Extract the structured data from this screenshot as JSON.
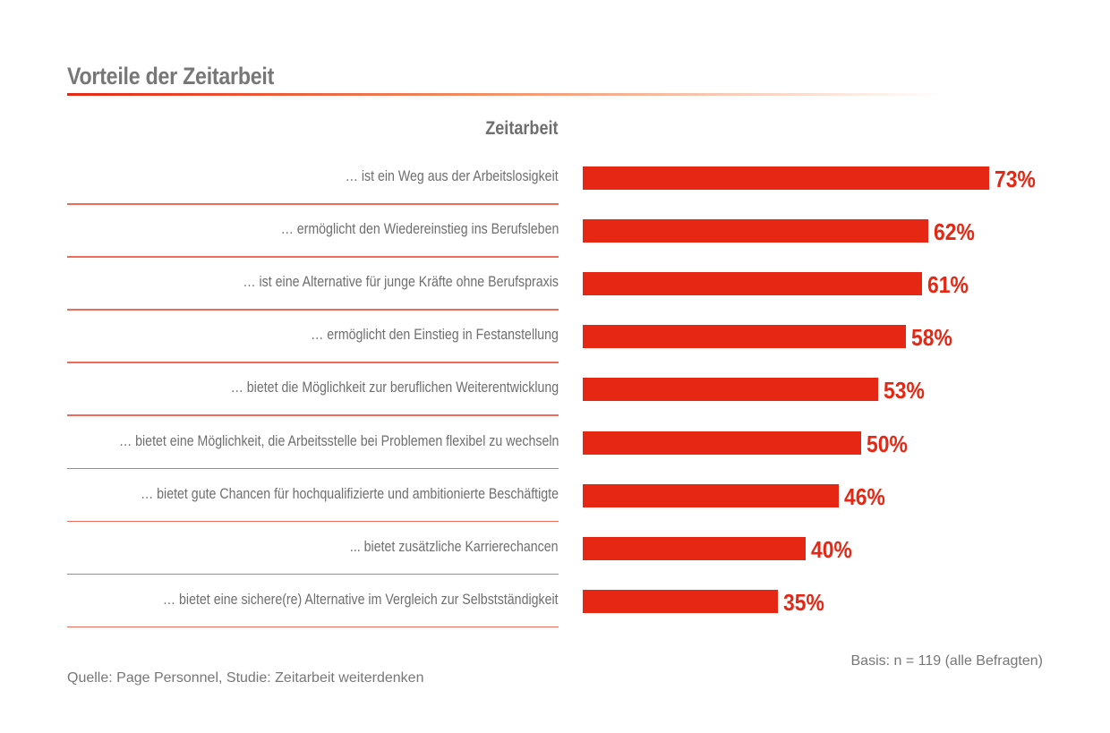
{
  "title": "Vorteile der Zeitarbeit",
  "colors": {
    "bar": "#e52713",
    "text": "#6e6e6e"
  },
  "chart_data": {
    "type": "bar",
    "orientation": "horizontal",
    "title": "Vorteile der Zeitarbeit",
    "series_label": "Zeitarbeit",
    "categories": [
      "… ist ein Weg aus der Arbeitslosigkeit",
      "… ermöglicht den Wiedereinstieg ins Berufsleben",
      "… ist eine Alternative für junge Kräfte ohne Berufspraxis",
      "… ermöglicht den Einstieg in Festanstellung",
      "… bietet die Möglichkeit zur beruflichen Weiterentwicklung",
      "… bietet eine Möglichkeit, die Arbeitsstelle bei Problemen flexibel zu wechseln",
      "… bietet gute Chancen für hochqualifizierte und ambitionierte Beschäftigte",
      "... bietet zusätzliche Karrierechancen",
      "… bietet eine sichere(re) Alternative im Vergleich zur Selbstständigkeit"
    ],
    "values": [
      73,
      62,
      61,
      58,
      53,
      50,
      46,
      40,
      35
    ],
    "value_labels": [
      "73%",
      "62%",
      "61%",
      "58%",
      "53%",
      "50%",
      "46%",
      "40%",
      "35%"
    ],
    "unit": "%",
    "xlim": [
      0,
      73
    ],
    "grid": false
  },
  "basis": "Basis: n = 119 (alle Befragten)",
  "source": "Quelle: Page Personnel, Studie: Zeitarbeit weiterdenken"
}
